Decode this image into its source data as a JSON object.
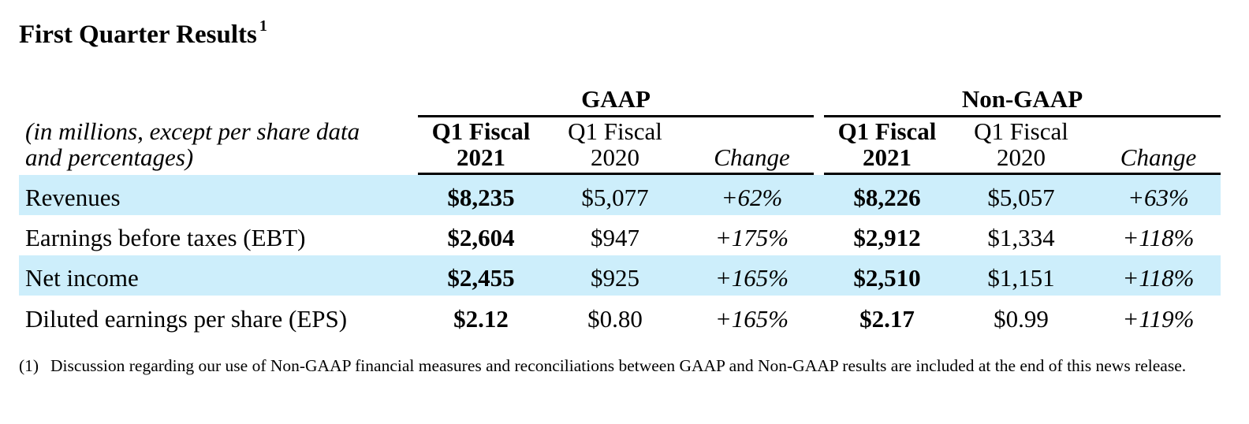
{
  "title": "First Quarter Results",
  "title_footnote": "1",
  "groups": {
    "gaap": "GAAP",
    "non_gaap": "Non-GAAP"
  },
  "unit_label": {
    "line1": "(in millions, except per share data",
    "line2": "and percentages)"
  },
  "columns": {
    "cur_line1": "Q1 Fiscal",
    "cur_line2": "2021",
    "prev_line1": "Q1 Fiscal",
    "prev_line2": "2020",
    "change": "Change"
  },
  "rows": [
    {
      "label": "Revenues",
      "gaap_cur": "$8,235",
      "gaap_prev": "$5,077",
      "gaap_change": "+62%",
      "ng_cur": "$8,226",
      "ng_prev": "$5,057",
      "ng_change": "+63%"
    },
    {
      "label": "Earnings before taxes (EBT)",
      "gaap_cur": "$2,604",
      "gaap_prev": "$947",
      "gaap_change": "+175%",
      "ng_cur": "$2,912",
      "ng_prev": "$1,334",
      "ng_change": "+118%"
    },
    {
      "label": "Net income",
      "gaap_cur": "$2,455",
      "gaap_prev": "$925",
      "gaap_change": "+165%",
      "ng_cur": "$2,510",
      "ng_prev": "$1,151",
      "ng_change": "+118%"
    },
    {
      "label": "Diluted earnings per share (EPS)",
      "gaap_cur": "$2.12",
      "gaap_prev": "$0.80",
      "gaap_change": "+165%",
      "ng_cur": "$2.17",
      "ng_prev": "$0.99",
      "ng_change": "+119%"
    }
  ],
  "footnote": {
    "number": "(1)",
    "text": "Discussion regarding our use of Non-GAAP financial measures and reconciliations between GAAP and Non-GAAP results are included at the end of this news release."
  },
  "colors": {
    "row_highlight": "#cdeefb"
  }
}
